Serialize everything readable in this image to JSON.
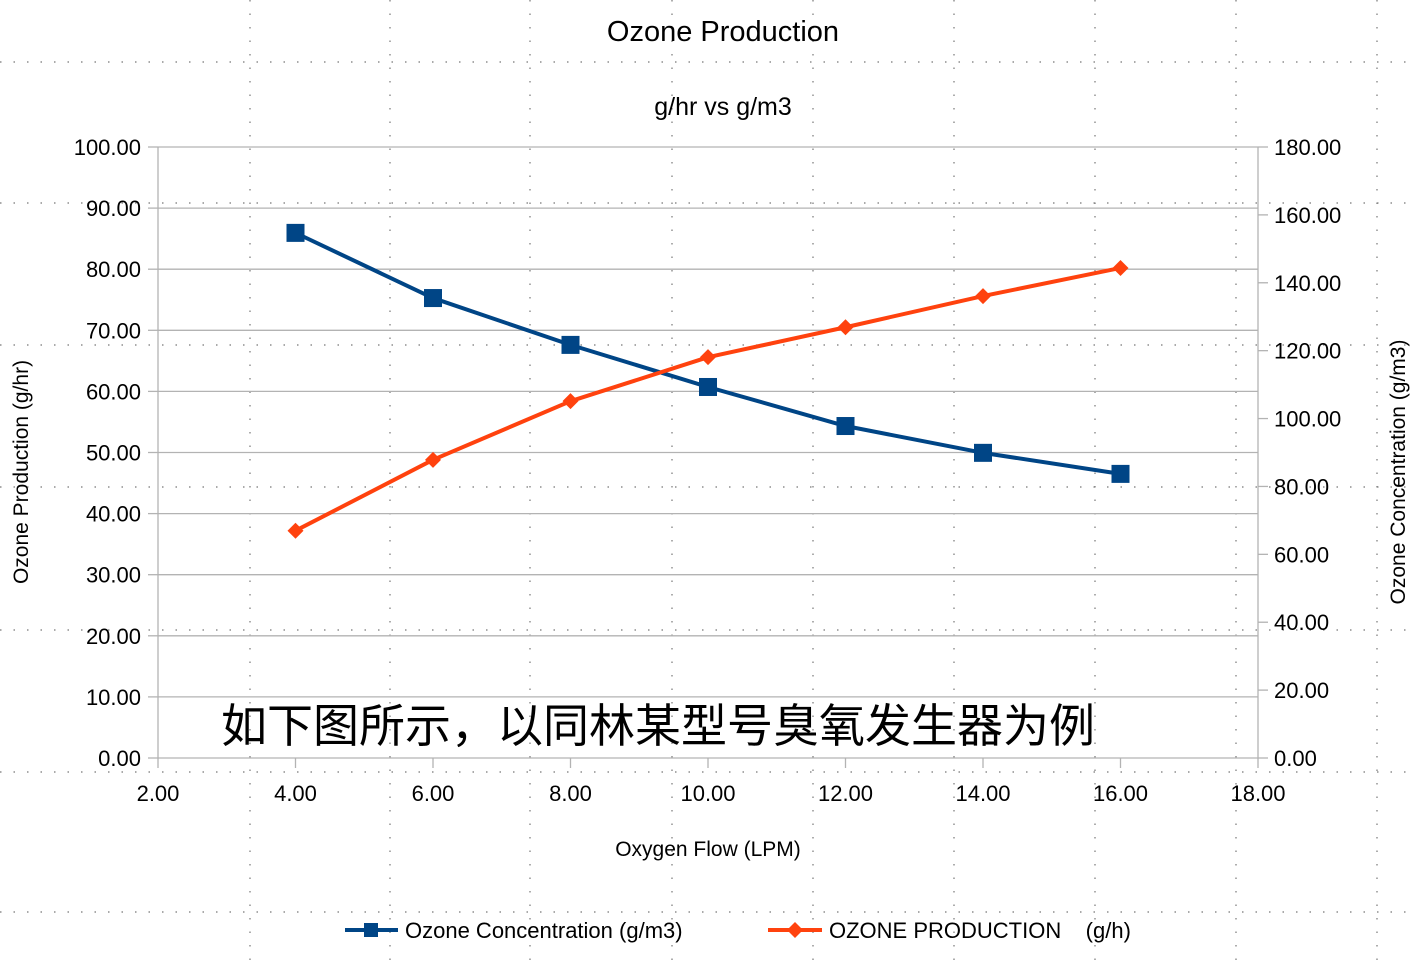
{
  "chart_data": {
    "type": "line",
    "title": "Ozone Production",
    "subtitle": "g/hr vs g/m3",
    "xlabel": "Oxygen Flow (LPM)",
    "ylabel": "Ozone Production (g/hr)",
    "y2label": "Ozone Concentration (g/m3)",
    "xlim": [
      2,
      18
    ],
    "ylim": [
      0,
      100
    ],
    "y2lim": [
      0,
      180
    ],
    "xticks": [
      "2.00",
      "4.00",
      "6.00",
      "8.00",
      "10.00",
      "12.00",
      "14.00",
      "16.00",
      "18.00"
    ],
    "yticks": [
      "0.00",
      "10.00",
      "20.00",
      "30.00",
      "40.00",
      "50.00",
      "60.00",
      "70.00",
      "80.00",
      "90.00",
      "100.00"
    ],
    "y2ticks": [
      "0.00",
      "20.00",
      "40.00",
      "60.00",
      "80.00",
      "100.00",
      "120.00",
      "140.00",
      "160.00",
      "180.00"
    ],
    "grid": "horizontal",
    "legend_position": "bottom",
    "annotation": "如下图所示，以同林某型号臭氧发生器为例",
    "x": [
      4,
      6,
      8,
      10,
      12,
      14,
      16
    ],
    "series": [
      {
        "name": "Ozone Concentration (g/m3)",
        "axis": "right",
        "color": "#004586",
        "marker": "square",
        "values": [
          154.7,
          135.5,
          121.7,
          109.3,
          97.8,
          89.9,
          83.7
        ]
      },
      {
        "name": "OZONE PRODUCTION    (g/h)",
        "axis": "left",
        "color": "#ff420e",
        "marker": "diamond",
        "values": [
          37.2,
          48.8,
          58.4,
          65.6,
          70.5,
          75.6,
          80.2
        ]
      }
    ]
  }
}
